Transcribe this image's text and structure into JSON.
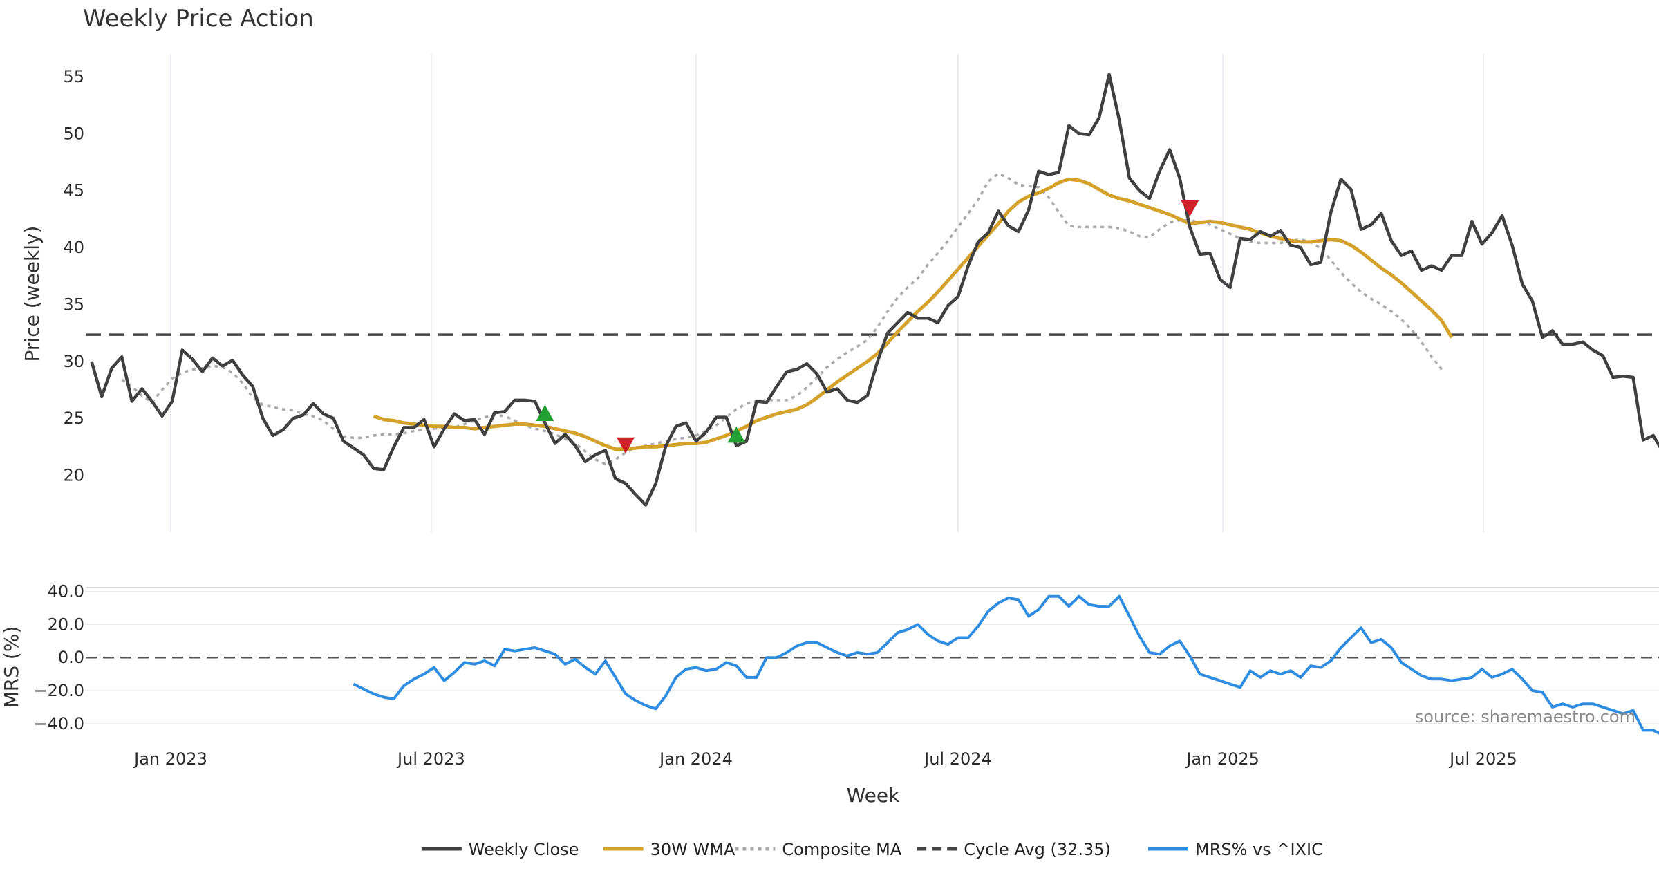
{
  "chart_data": {
    "type": "line",
    "title": "Weekly Price Action",
    "xlabel": "Week",
    "x_ticks": [
      "Jan 2023",
      "Jul 2023",
      "Jan 2024",
      "Jul 2024",
      "Jan 2025",
      "Jul 2025"
    ],
    "x_tick_dates": [
      "2023-01-01",
      "2023-07-01",
      "2024-01-01",
      "2024-07-01",
      "2025-01-01",
      "2025-07-01"
    ],
    "source_note": "source: sharemaestro.com",
    "price_panel": {
      "ylabel": "Price (weekly)",
      "ylim": [
        15,
        57
      ],
      "y_ticks": [
        "20",
        "25",
        "30",
        "35",
        "40",
        "45",
        "50",
        "55"
      ],
      "y_tick_values": [
        20,
        25,
        30,
        35,
        40,
        45,
        50,
        55
      ],
      "series": [
        {
          "name": "Weekly Close",
          "color": "#404040",
          "style": "solid",
          "x_start": "2022-11-07",
          "values": [
            30.0,
            26.9,
            29.4,
            30.4,
            26.5,
            27.6,
            26.5,
            25.2,
            26.5,
            31.0,
            30.2,
            29.1,
            30.3,
            29.6,
            30.1,
            28.8,
            27.8,
            25.0,
            23.5,
            24.0,
            25.0,
            25.3,
            26.3,
            25.4,
            25.0,
            23.0,
            22.4,
            21.8,
            20.6,
            20.5,
            22.5,
            24.2,
            24.2,
            24.9,
            22.5,
            24.1,
            25.4,
            24.8,
            24.9,
            23.6,
            25.5,
            25.6,
            26.6,
            26.6,
            26.5,
            24.6,
            22.8,
            23.6,
            22.6,
            21.2,
            21.8,
            22.2,
            19.7,
            19.3,
            18.3,
            17.4,
            19.3,
            22.6,
            24.3,
            24.6,
            23.0,
            23.8,
            25.1,
            25.1,
            22.6,
            23.0,
            26.5,
            26.4,
            27.8,
            29.1,
            29.3,
            29.8,
            28.9,
            27.3,
            27.6,
            26.6,
            26.4,
            27.0,
            30.0,
            32.5,
            33.4,
            34.3,
            33.8,
            33.8,
            33.4,
            34.9,
            35.7,
            38.4,
            40.5,
            41.3,
            43.2,
            41.9,
            41.4,
            43.3,
            46.7,
            46.4,
            46.6,
            50.7,
            50.0,
            49.9,
            51.4,
            55.2,
            51.2,
            46.1,
            45.0,
            44.3,
            46.7,
            48.6,
            46.1,
            41.8,
            39.4,
            39.5,
            37.2,
            36.5,
            40.8,
            40.7,
            41.4,
            41.0,
            41.5,
            40.2,
            40.0,
            38.5,
            38.7,
            43.1,
            46.0,
            45.1,
            41.6,
            42.0,
            43.0,
            40.6,
            39.3,
            39.7,
            38.0,
            38.4,
            38.0,
            39.3,
            39.3,
            42.3,
            40.3,
            41.3,
            42.8,
            40.2,
            36.8,
            35.3,
            32.1,
            32.7,
            31.5,
            31.5,
            31.7,
            31.0,
            30.5,
            28.6,
            28.7,
            28.6,
            23.1,
            23.5,
            22.0
          ]
        },
        {
          "name": "30W WMA",
          "color": "#d4a12a",
          "style": "solid",
          "x_start": "2023-05-22",
          "values": [
            25.2,
            24.9,
            24.8,
            24.6,
            24.5,
            24.4,
            24.3,
            24.3,
            24.2,
            24.2,
            24.1,
            24.2,
            24.3,
            24.4,
            24.5,
            24.5,
            24.4,
            24.3,
            24.1,
            23.9,
            23.7,
            23.4,
            23.0,
            22.6,
            22.3,
            22.3,
            22.4,
            22.5,
            22.5,
            22.6,
            22.7,
            22.8,
            22.8,
            22.9,
            23.2,
            23.5,
            23.9,
            24.3,
            24.8,
            25.1,
            25.4,
            25.6,
            25.8,
            26.2,
            26.8,
            27.5,
            28.2,
            28.8,
            29.4,
            30.0,
            30.7,
            31.6,
            32.6,
            33.5,
            34.4,
            35.2,
            36.1,
            37.1,
            38.1,
            39.1,
            40.1,
            41.1,
            42.1,
            43.2,
            44.0,
            44.5,
            44.8,
            45.2,
            45.7,
            46.0,
            45.9,
            45.6,
            45.1,
            44.6,
            44.3,
            44.1,
            43.8,
            43.5,
            43.2,
            42.9,
            42.5,
            42.1,
            42.2,
            42.3,
            42.2,
            42.0,
            41.8,
            41.6,
            41.3,
            41.0,
            40.8,
            40.6,
            40.5,
            40.5,
            40.6,
            40.7,
            40.6,
            40.2,
            39.6,
            38.9,
            38.2,
            37.6,
            36.9,
            36.1,
            35.3,
            34.5,
            33.6,
            32.1
          ]
        },
        {
          "name": "Composite MA",
          "color": "#aaaaaa",
          "style": "dotted",
          "x_start": "2022-11-28",
          "values": [
            28.4,
            27.8,
            27.0,
            26.4,
            27.5,
            28.5,
            29.0,
            29.3,
            29.4,
            29.6,
            29.5,
            29.0,
            28.1,
            26.8,
            26.2,
            26.0,
            25.8,
            25.7,
            25.4,
            25.2,
            24.8,
            24.1,
            23.4,
            23.3,
            23.3,
            23.5,
            23.6,
            23.6,
            23.7,
            23.9,
            24.0,
            24.1,
            24.2,
            24.2,
            24.5,
            24.8,
            25.1,
            25.3,
            25.2,
            24.8,
            24.4,
            24.1,
            23.9,
            23.6,
            23.2,
            22.8,
            22.1,
            21.4,
            21.0,
            21.4,
            22.0,
            22.4,
            22.6,
            22.8,
            23.0,
            23.2,
            23.3,
            23.5,
            23.9,
            24.4,
            25.1,
            25.8,
            26.3,
            26.5,
            26.6,
            26.6,
            26.6,
            27.0,
            27.7,
            28.6,
            29.5,
            30.2,
            30.8,
            31.3,
            31.9,
            33.0,
            34.4,
            35.6,
            36.5,
            37.3,
            38.5,
            39.5,
            40.6,
            41.8,
            43.0,
            44.2,
            45.8,
            46.5,
            46.1,
            45.5,
            45.4,
            45.3,
            44.4,
            43.1,
            41.9,
            41.8,
            41.8,
            41.8,
            41.8,
            41.7,
            41.4,
            41.0,
            40.9,
            41.6,
            42.2,
            42.4,
            42.4,
            42.2,
            42.0,
            41.6,
            41.2,
            40.8,
            40.5,
            40.4,
            40.4,
            40.4,
            40.6,
            40.7,
            40.5,
            39.9,
            38.9,
            37.8,
            36.9,
            36.1,
            35.5,
            35.0,
            34.4,
            33.7,
            32.8,
            31.7,
            30.4,
            29.3
          ]
        }
      ],
      "reference_lines": [
        {
          "name": "Cycle Avg (32.35)",
          "value": 32.35,
          "color": "#444444",
          "style": "dashed"
        }
      ],
      "markers": [
        {
          "date": "2023-09-18",
          "value": 25.4,
          "kind": "up",
          "color": "#22a032"
        },
        {
          "date": "2023-11-13",
          "value": 22.7,
          "kind": "down",
          "color": "#d0202a"
        },
        {
          "date": "2024-01-29",
          "value": 23.5,
          "kind": "up",
          "color": "#22a032"
        },
        {
          "date": "2024-12-09",
          "value": 43.5,
          "kind": "down",
          "color": "#d0202a"
        }
      ]
    },
    "mrs_panel": {
      "ylabel": "MRS (%)",
      "ylim": [
        -48,
        44
      ],
      "y_ticks": [
        "40.0",
        "20.0",
        "0.0",
        "−20.0",
        "−40.0"
      ],
      "y_tick_values": [
        40,
        20,
        0,
        -20,
        -40
      ],
      "series": [
        {
          "name": "MRS% vs ^IXIC",
          "color": "#2e8de0",
          "style": "solid",
          "x_start": "2023-05-08",
          "values": [
            -16.0,
            -19.0,
            -22.0,
            -24.0,
            -25.0,
            -17.0,
            -13.0,
            -10.0,
            -6.0,
            -14.0,
            -9.0,
            -3.0,
            -4.0,
            -2.0,
            -5.0,
            5.0,
            4.0,
            5.0,
            6.0,
            4.0,
            2.0,
            -4.0,
            -1.0,
            -6.0,
            -10.0,
            -2.0,
            -12.0,
            -22.0,
            -26.0,
            -29.0,
            -31.0,
            -23.0,
            -12.0,
            -7.0,
            -6.0,
            -8.0,
            -7.0,
            -3.0,
            -5.0,
            -12.0,
            -12.0,
            0.0,
            0.0,
            3.0,
            7.0,
            9.0,
            9.0,
            6.0,
            3.0,
            1.0,
            3.0,
            2.0,
            3.0,
            9.0,
            15.0,
            17.0,
            20.0,
            14.0,
            10.0,
            8.0,
            12.0,
            12.0,
            19.0,
            28.0,
            33.0,
            36.0,
            35.0,
            25.0,
            29.0,
            37.0,
            37.0,
            31.0,
            37.0,
            32.0,
            31.0,
            31.0,
            37.0,
            25.0,
            13.0,
            3.0,
            2.0,
            7.0,
            10.0,
            1.0,
            -10.0,
            -12.0,
            -14.0,
            -16.0,
            -18.0,
            -8.0,
            -12.0,
            -8.0,
            -10.0,
            -8.0,
            -12.0,
            -5.0,
            -6.0,
            -2.0,
            6.0,
            12.0,
            18.0,
            9.0,
            11.0,
            6.0,
            -3.0,
            -7.0,
            -11.0,
            -13.0,
            -13.0,
            -14.0,
            -13.0,
            -12.0,
            -7.0,
            -12.0,
            -10.0,
            -7.0,
            -13.0,
            -20.0,
            -21.0,
            -30.0,
            -28.0,
            -30.0,
            -28.0,
            -28.0,
            -30.0,
            -32.0,
            -34.0,
            -32.0,
            -44.0,
            -44.0,
            -47.0
          ]
        }
      ],
      "reference_lines": [
        {
          "value": 0,
          "color": "#555555",
          "style": "dashed"
        }
      ]
    },
    "legend": {
      "placement": "bottom-center",
      "items": [
        {
          "label": "Weekly Close",
          "color": "#404040",
          "style": "solid"
        },
        {
          "label": "30W WMA",
          "color": "#d4a12a",
          "style": "solid"
        },
        {
          "label": "Composite MA",
          "color": "#aaaaaa",
          "style": "dotted"
        },
        {
          "label": "Cycle Avg (32.35)",
          "color": "#444444",
          "style": "dashed"
        },
        {
          "label": "MRS% vs ^IXIC",
          "color": "#2e8de0",
          "style": "solid"
        }
      ]
    }
  }
}
